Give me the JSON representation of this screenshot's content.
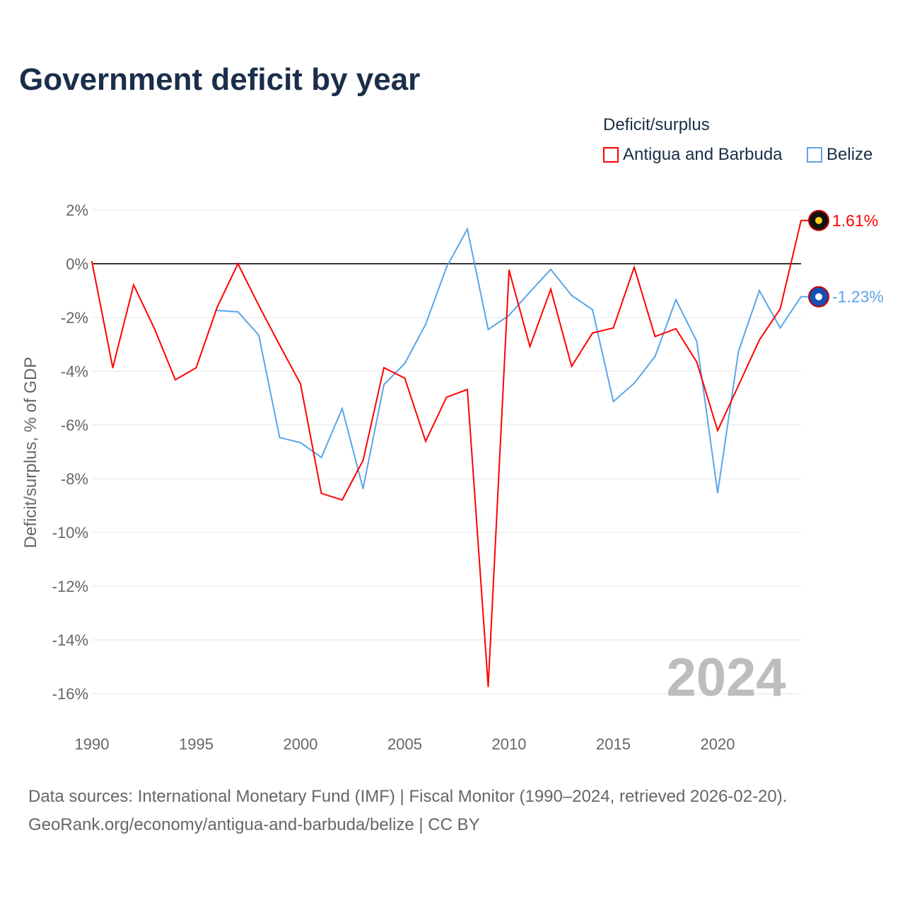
{
  "chart_data": {
    "type": "line",
    "title": "Government deficit by year",
    "ylabel": "Deficit/surplus, % of GDP",
    "xlabel": "",
    "legend_title": "Deficit/surplus",
    "legend_position": "top-right",
    "xlim": [
      1990,
      2024
    ],
    "ylim": [
      -17,
      2.5
    ],
    "x_ticks": [
      "1990",
      "1995",
      "2000",
      "2005",
      "2010",
      "2015",
      "2020"
    ],
    "y_ticks": [
      "2%",
      "0%",
      "-2%",
      "-4%",
      "-6%",
      "-8%",
      "-10%",
      "-12%",
      "-14%",
      "-16%"
    ],
    "year_watermark": "2024",
    "series": [
      {
        "name": "Antigua and Barbuda",
        "color": "#ff0000",
        "end_label": "1.61%",
        "start_year": 1990,
        "values": [
          0.08,
          -3.87,
          -0.79,
          -2.42,
          -4.32,
          -3.87,
          -1.63,
          0,
          -1.55,
          -3.03,
          -4.47,
          -8.55,
          -8.79,
          -7.32,
          -3.87,
          -4.26,
          -6.61,
          -4.97,
          -4.68,
          -15.74,
          -0.24,
          -3.08,
          -0.95,
          -3.82,
          -2.58,
          -2.39,
          -0.13,
          -2.71,
          -2.42,
          -3.66,
          -6.21,
          -4.53,
          -2.84,
          -1.68,
          1.61
        ]
      },
      {
        "name": "Belize",
        "color": "#5aa5e8",
        "end_label": "-1.23%",
        "start_year": 1996,
        "values": [
          -1.74,
          -1.79,
          -2.66,
          -6.47,
          -6.66,
          -7.21,
          -5.39,
          -8.37,
          -4.5,
          -3.71,
          -2.26,
          -0.13,
          1.29,
          -2.45,
          -1.92,
          -1.05,
          -0.21,
          -1.18,
          -1.71,
          -5.13,
          -4.45,
          -3.45,
          -1.34,
          -2.89,
          -8.53,
          -3.26,
          -1.0,
          -2.39,
          -1.23
        ]
      }
    ]
  },
  "source_line1": "Data sources: International Monetary Fund (IMF) | Fiscal Monitor (1990–2024, retrieved 2026-02-20).",
  "source_line2": "GeoRank.org/economy/antigua-and-barbuda/belize | CC BY"
}
